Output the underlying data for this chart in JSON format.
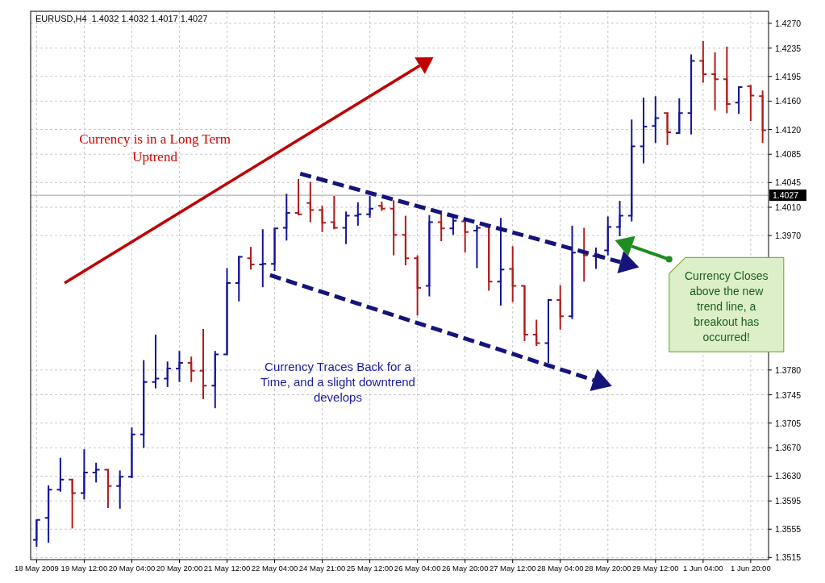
{
  "chart_data": {
    "type": "candlestick",
    "title": "EURUSD,H4  1.4032 1.4032 1.4017 1.4027",
    "categories": [
      "18 May 2009",
      null,
      null,
      null,
      "19 May 12:00",
      null,
      null,
      null,
      "20 May 04:00",
      null,
      null,
      null,
      "20 May 20:00",
      null,
      null,
      null,
      "21 May 12:00",
      null,
      null,
      null,
      "22 May 04:00",
      null,
      null,
      null,
      "24 May 21:00",
      null,
      null,
      null,
      "25 May 12:00",
      null,
      null,
      null,
      "26 May 04:00",
      null,
      null,
      null,
      "26 May 20:00",
      null,
      null,
      null,
      "27 May 12:00",
      null,
      null,
      null,
      "28 May 04:00",
      null,
      null,
      null,
      "28 May 20:00",
      null,
      null,
      null,
      "29 May 12:00",
      null,
      null,
      null,
      "1 Jun 04:00",
      null,
      null,
      null,
      "1 Jun 20:00",
      null
    ],
    "ohlc": [
      [
        1.354,
        1.3568,
        1.353,
        1.3568
      ],
      [
        1.3571,
        1.3617,
        1.3536,
        1.3611
      ],
      [
        1.3611,
        1.3656,
        1.3608,
        1.3625
      ],
      [
        1.3625,
        1.3626,
        1.3556,
        1.3606
      ],
      [
        1.3606,
        1.3668,
        1.3597,
        1.3635
      ],
      [
        1.3635,
        1.3649,
        1.3621,
        1.3639
      ],
      [
        1.3639,
        1.364,
        1.3585,
        1.3616
      ],
      [
        1.3616,
        1.3638,
        1.3584,
        1.3629
      ],
      [
        1.3629,
        1.3699,
        1.3627,
        1.3689
      ],
      [
        1.3689,
        1.3794,
        1.367,
        1.3763
      ],
      [
        1.3763,
        1.383,
        1.3754,
        1.3768
      ],
      [
        1.3768,
        1.3792,
        1.3756,
        1.3782
      ],
      [
        1.3782,
        1.3807,
        1.3763,
        1.379
      ],
      [
        1.379,
        1.3799,
        1.3763,
        1.3779
      ],
      [
        1.3779,
        1.3838,
        1.3739,
        1.3758
      ],
      [
        1.3758,
        1.3807,
        1.3726,
        1.3802
      ],
      [
        1.3802,
        1.3924,
        1.3802,
        1.3903
      ],
      [
        1.3903,
        1.3941,
        1.3877,
        1.394
      ],
      [
        1.3938,
        1.3954,
        1.3922,
        1.3929
      ],
      [
        1.3929,
        1.3979,
        1.3897,
        1.393
      ],
      [
        1.393,
        1.3981,
        1.392,
        1.398
      ],
      [
        1.3981,
        1.4029,
        1.3963,
        1.4002
      ],
      [
        1.4002,
        1.405,
        1.3999,
        1.4
      ],
      [
        1.4016,
        1.4046,
        1.3989,
        1.4006
      ],
      [
        1.4006,
        1.4012,
        1.3975,
        1.3988
      ],
      [
        1.3989,
        1.4026,
        1.3979,
        1.3981
      ],
      [
        1.3981,
        1.4004,
        1.3958,
        1.3998
      ],
      [
        1.3998,
        1.4017,
        1.3984,
        1.4
      ],
      [
        1.4,
        1.4026,
        1.3995,
        1.4008
      ],
      [
        1.4012,
        1.4018,
        1.4005,
        1.4008
      ],
      [
        1.4008,
        1.402,
        1.3942,
        1.3971
      ],
      [
        1.3971,
        1.3998,
        1.3928,
        1.3938
      ],
      [
        1.3938,
        1.3942,
        1.3857,
        1.3896
      ],
      [
        1.3899,
        1.3999,
        1.3884,
        1.3989
      ],
      [
        1.3989,
        1.4002,
        1.3962,
        1.398
      ],
      [
        1.398,
        1.3999,
        1.3971,
        1.3991
      ],
      [
        1.399,
        1.3991,
        1.3946,
        1.3975
      ],
      [
        1.3977,
        1.3985,
        1.3924,
        1.3981
      ],
      [
        1.3982,
        1.3984,
        1.3892,
        1.3905
      ],
      [
        1.3905,
        1.3995,
        1.3871,
        1.3922
      ],
      [
        1.3923,
        1.3955,
        1.3876,
        1.3899
      ],
      [
        1.3899,
        1.3899,
        1.3821,
        1.383
      ],
      [
        1.383,
        1.3851,
        1.3814,
        1.3818
      ],
      [
        1.3818,
        1.388,
        1.379,
        1.3879
      ],
      [
        1.3879,
        1.39,
        1.3837,
        1.3856
      ],
      [
        1.3856,
        1.3984,
        1.3852,
        1.3946
      ],
      [
        1.3946,
        1.3981,
        1.3905,
        1.3942
      ],
      [
        1.3941,
        1.3953,
        1.3923,
        1.3943
      ],
      [
        1.3949,
        1.3997,
        1.3942,
        1.3982
      ],
      [
        1.3982,
        1.4019,
        1.3969,
        1.3998
      ],
      [
        1.3998,
        1.4134,
        1.399,
        1.4096
      ],
      [
        1.4096,
        1.4165,
        1.4072,
        1.4124
      ],
      [
        1.4125,
        1.4167,
        1.4101,
        1.4136
      ],
      [
        1.4143,
        1.4144,
        1.4098,
        1.4116
      ],
      [
        1.4115,
        1.4164,
        1.4114,
        1.4143
      ],
      [
        1.4143,
        1.4226,
        1.4113,
        1.4217
      ],
      [
        1.4217,
        1.4245,
        1.4186,
        1.4198
      ],
      [
        1.4198,
        1.4229,
        1.4147,
        1.4191
      ],
      [
        1.4191,
        1.4237,
        1.4143,
        1.4156
      ],
      [
        1.4158,
        1.4181,
        1.4142,
        1.418
      ],
      [
        1.4181,
        1.4183,
        1.4132,
        1.4168
      ],
      [
        1.4167,
        1.4175,
        1.4101,
        1.4119
      ]
    ],
    "colors": [
      "#14149a",
      "#14149a",
      "#14149a",
      "#b01c1c",
      "#14149a",
      "#14149a",
      "#b01c1c",
      "#14149a",
      "#14149a",
      "#14149a",
      "#14149a",
      "#14149a",
      "#14149a",
      "#b01c1c",
      "#b01c1c",
      "#14149a",
      "#14149a",
      "#14149a",
      "#b01c1c",
      "#14149a",
      "#14149a",
      "#14149a",
      "#b01c1c",
      "#b01c1c",
      "#b01c1c",
      "#b01c1c",
      "#14149a",
      "#14149a",
      "#14149a",
      "#b01c1c",
      "#b01c1c",
      "#b01c1c",
      "#b01c1c",
      "#14149a",
      "#b01c1c",
      "#14149a",
      "#b01c1c",
      "#14149a",
      "#b01c1c",
      "#14149a",
      "#b01c1c",
      "#b01c1c",
      "#b01c1c",
      "#14149a",
      "#b01c1c",
      "#14149a",
      "#b01c1c",
      "#14149a",
      "#14149a",
      "#14149a",
      "#14149a",
      "#14149a",
      "#14149a",
      "#b01c1c",
      "#14149a",
      "#14149a",
      "#b01c1c",
      "#b01c1c",
      "#b01c1c",
      "#14149a",
      "#b01c1c",
      "#b01c1c"
    ],
    "ylim": [
      1.3512,
      1.4287
    ],
    "yticks": [
      {
        "value": 1.427,
        "label": "1.4270"
      },
      1.4235,
      1.4195,
      {
        "value": 1.416,
        "label": "1.4160"
      },
      {
        "value": 1.412,
        "label": "1.4120"
      },
      1.4085,
      1.4045,
      {
        "value": 1.401,
        "label": "1.4010"
      },
      {
        "value": 1.397,
        "label": "1.3970"
      },
      {
        "value": 1.378,
        "label": "1.3780"
      },
      1.3745,
      1.3705,
      {
        "value": 1.367,
        "label": "1.3670"
      },
      {
        "value": 1.363,
        "label": "1.3630"
      },
      1.3595,
      1.3555,
      1.3515
    ],
    "grid": true,
    "ref_lines": [
      {
        "axis": "y",
        "value": 1.4027,
        "label": "1.4027",
        "color": "#a0a0a0"
      }
    ],
    "annotations": [
      "Currency is in a Long Term Uptrend",
      "Currency Traces Back for a Time, and a slight downtrend develops",
      "Currency Closes above the new trend line, a breakout has occurred!"
    ]
  }
}
